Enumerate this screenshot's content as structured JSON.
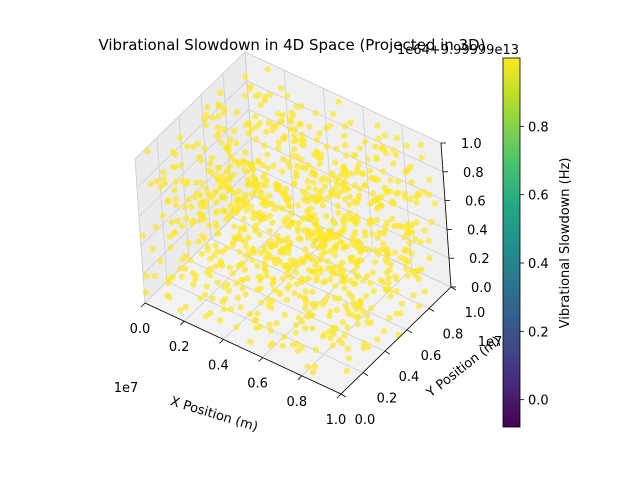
{
  "chart_data": {
    "type": "scatter",
    "projection": "3d",
    "title": "Vibrational Slowdown in 4D Space (Projected in 3D)",
    "xlabel": "X Position (m)",
    "ylabel": "Y Position (m)",
    "zlabel": "",
    "x_offset_label": "1e7",
    "y_offset_label": "1e7",
    "z_offset_label": "1e64+9.99999e13",
    "xlim": [
      0.0,
      1.0
    ],
    "ylim": [
      0.0,
      1.0
    ],
    "zlim": [
      0.0,
      1.0
    ],
    "x_ticks": [
      "0.0",
      "0.2",
      "0.4",
      "0.6",
      "0.8",
      "1.0"
    ],
    "y_ticks": [
      "0.0",
      "0.2",
      "0.4",
      "0.6",
      "0.8",
      "1.0"
    ],
    "z_ticks": [
      "0.0",
      "0.2",
      "0.4",
      "0.6",
      "0.8",
      "1.0"
    ],
    "grid": true,
    "point_count": 1000,
    "point_distribution": "uniform random in [0,1]×[0,1]×[0,1] (scaled ×1e7 on x and y)",
    "point_color": "#fde725",
    "point_opacity": 0.7,
    "colorbar": {
      "label": "Vibrational Slowdown (Hz)",
      "colormap": "viridis",
      "range": [
        -0.08,
        1.0
      ],
      "ticks": [
        "0.0",
        "0.2",
        "0.4",
        "0.6",
        "0.8"
      ],
      "tick_values": [
        0.0,
        0.2,
        0.4,
        0.6,
        0.8
      ]
    }
  }
}
